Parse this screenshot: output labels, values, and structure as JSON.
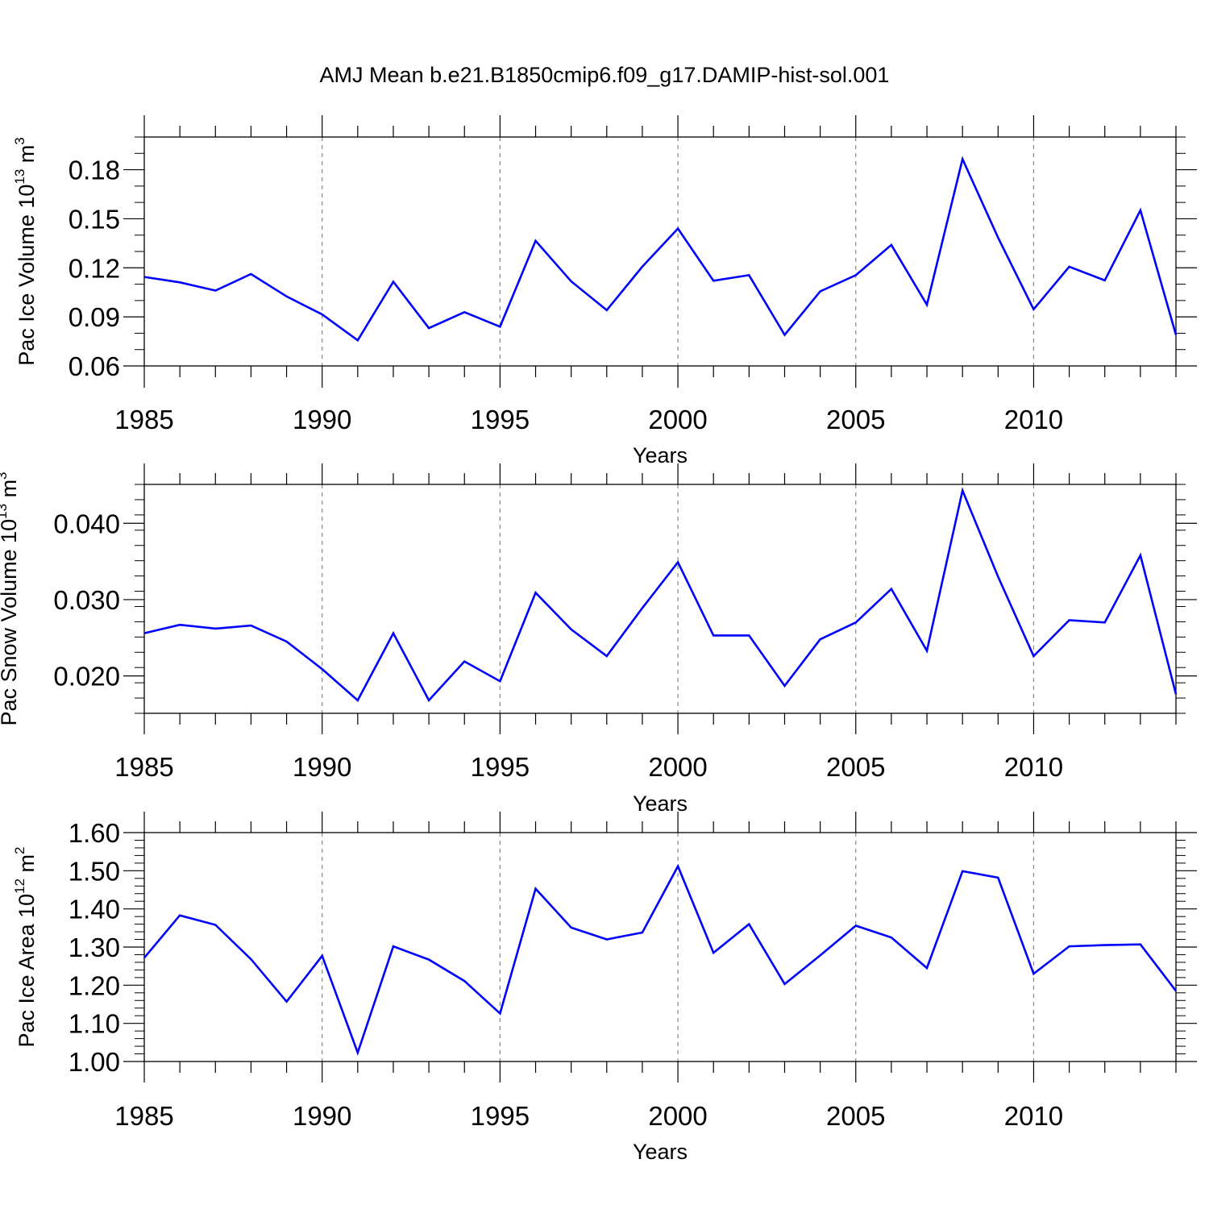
{
  "title": "AMJ Mean b.e21.B1850cmip6.f09_g17.DAMIP-hist-sol.001",
  "colors": {
    "line": "#0000ff",
    "axis": "#000000",
    "grid": "#888888"
  },
  "chart_data": [
    {
      "type": "line",
      "title": "AMJ Mean b.e21.B1850cmip6.f09_g17.DAMIP-hist-sol.001",
      "xlabel": "Years",
      "ylabel": {
        "base": "Pac Ice Volume 10",
        "sup1": "13",
        "mid": " m",
        "sup2": "3"
      },
      "xlim": [
        1985,
        2014
      ],
      "ylim": [
        0.06,
        0.2
      ],
      "yticks": [
        0.06,
        0.09,
        0.12,
        0.15,
        0.18
      ],
      "ytick_labels": [
        "0.06",
        "0.09",
        "0.12",
        "0.15",
        "0.18"
      ],
      "yminor_step": 0.01,
      "xticks": [
        1985,
        1990,
        1995,
        2000,
        2005,
        2010
      ],
      "xtick_labels": [
        "1985",
        "1990",
        "1995",
        "2000",
        "2005",
        "2010"
      ],
      "grid": "vertical-dashed",
      "x": [
        1985,
        1986,
        1987,
        1988,
        1989,
        1990,
        1991,
        1992,
        1993,
        1994,
        1995,
        1996,
        1997,
        1998,
        1999,
        2000,
        2001,
        2002,
        2003,
        2004,
        2005,
        2006,
        2007,
        2008,
        2009,
        2010,
        2011,
        2012,
        2013,
        2014
      ],
      "series": [
        {
          "name": "Pac Ice Volume",
          "values": [
            0.1144,
            0.1111,
            0.1061,
            0.1162,
            0.1025,
            0.0915,
            0.0757,
            0.1115,
            0.0831,
            0.0929,
            0.084,
            0.1365,
            0.1117,
            0.0941,
            0.1207,
            0.144,
            0.1121,
            0.1155,
            0.079,
            0.1056,
            0.1155,
            0.134,
            0.0974,
            0.1865,
            0.1385,
            0.0946,
            0.1207,
            0.1123,
            0.1552,
            0.079
          ]
        }
      ]
    },
    {
      "type": "line",
      "xlabel": "Years",
      "ylabel": {
        "base": "Pac Snow Volume 10",
        "sup1": "13",
        "mid": " m",
        "sup2": "3"
      },
      "xlim": [
        1985,
        2014
      ],
      "ylim": [
        0.0151,
        0.0451
      ],
      "yticks": [
        0.02,
        0.03,
        0.04
      ],
      "ytick_labels": [
        "0.020",
        "0.030",
        "0.040"
      ],
      "yminor_step": 0.002,
      "xticks": [
        1985,
        1990,
        1995,
        2000,
        2005,
        2010
      ],
      "xtick_labels": [
        "1985",
        "1990",
        "1995",
        "2000",
        "2005",
        "2010"
      ],
      "grid": "vertical-dashed",
      "x": [
        1985,
        1986,
        1987,
        1988,
        1989,
        1990,
        1991,
        1992,
        1993,
        1994,
        1995,
        1996,
        1997,
        1998,
        1999,
        2000,
        2001,
        2002,
        2003,
        2004,
        2005,
        2006,
        2007,
        2008,
        2009,
        2010,
        2011,
        2012,
        2013,
        2014
      ],
      "series": [
        {
          "name": "Pac Snow Volume",
          "values": [
            0.0256,
            0.0267,
            0.0262,
            0.0266,
            0.0245,
            0.0209,
            0.0168,
            0.0256,
            0.0168,
            0.0219,
            0.0193,
            0.0309,
            0.0261,
            0.0226,
            0.0289,
            0.0349,
            0.0253,
            0.0253,
            0.0187,
            0.0248,
            0.027,
            0.0314,
            0.0233,
            0.0443,
            0.033,
            0.0226,
            0.0273,
            0.027,
            0.0358,
            0.0176
          ]
        }
      ]
    },
    {
      "type": "line",
      "xlabel": "Years",
      "ylabel": {
        "base": "Pac Ice Area 10",
        "sup1": "12",
        "mid": " m",
        "sup2": "2"
      },
      "xlim": [
        1985,
        2014
      ],
      "ylim": [
        1.0,
        1.6
      ],
      "yticks": [
        1.0,
        1.1,
        1.2,
        1.3,
        1.4,
        1.5,
        1.6
      ],
      "ytick_labels": [
        "1.00",
        "1.10",
        "1.20",
        "1.30",
        "1.40",
        "1.50",
        "1.60"
      ],
      "yminor_step": 0.02,
      "xticks": [
        1985,
        1990,
        1995,
        2000,
        2005,
        2010
      ],
      "xtick_labels": [
        "1985",
        "1990",
        "1995",
        "2000",
        "2005",
        "2010"
      ],
      "grid": "vertical-dashed",
      "x": [
        1985,
        1986,
        1987,
        1988,
        1989,
        1990,
        1991,
        1992,
        1993,
        1994,
        1995,
        1996,
        1997,
        1998,
        1999,
        2000,
        2001,
        2002,
        2003,
        2004,
        2005,
        2006,
        2007,
        2008,
        2009,
        2010,
        2011,
        2012,
        2013,
        2014
      ],
      "series": [
        {
          "name": "Pac Ice Area",
          "values": [
            1.272,
            1.383,
            1.358,
            1.268,
            1.157,
            1.277,
            1.023,
            1.302,
            1.267,
            1.211,
            1.126,
            1.453,
            1.351,
            1.32,
            1.338,
            1.512,
            1.285,
            1.36,
            1.203,
            1.278,
            1.356,
            1.325,
            1.245,
            1.499,
            1.482,
            1.23,
            1.302,
            1.305,
            1.307,
            1.185
          ]
        }
      ]
    }
  ]
}
